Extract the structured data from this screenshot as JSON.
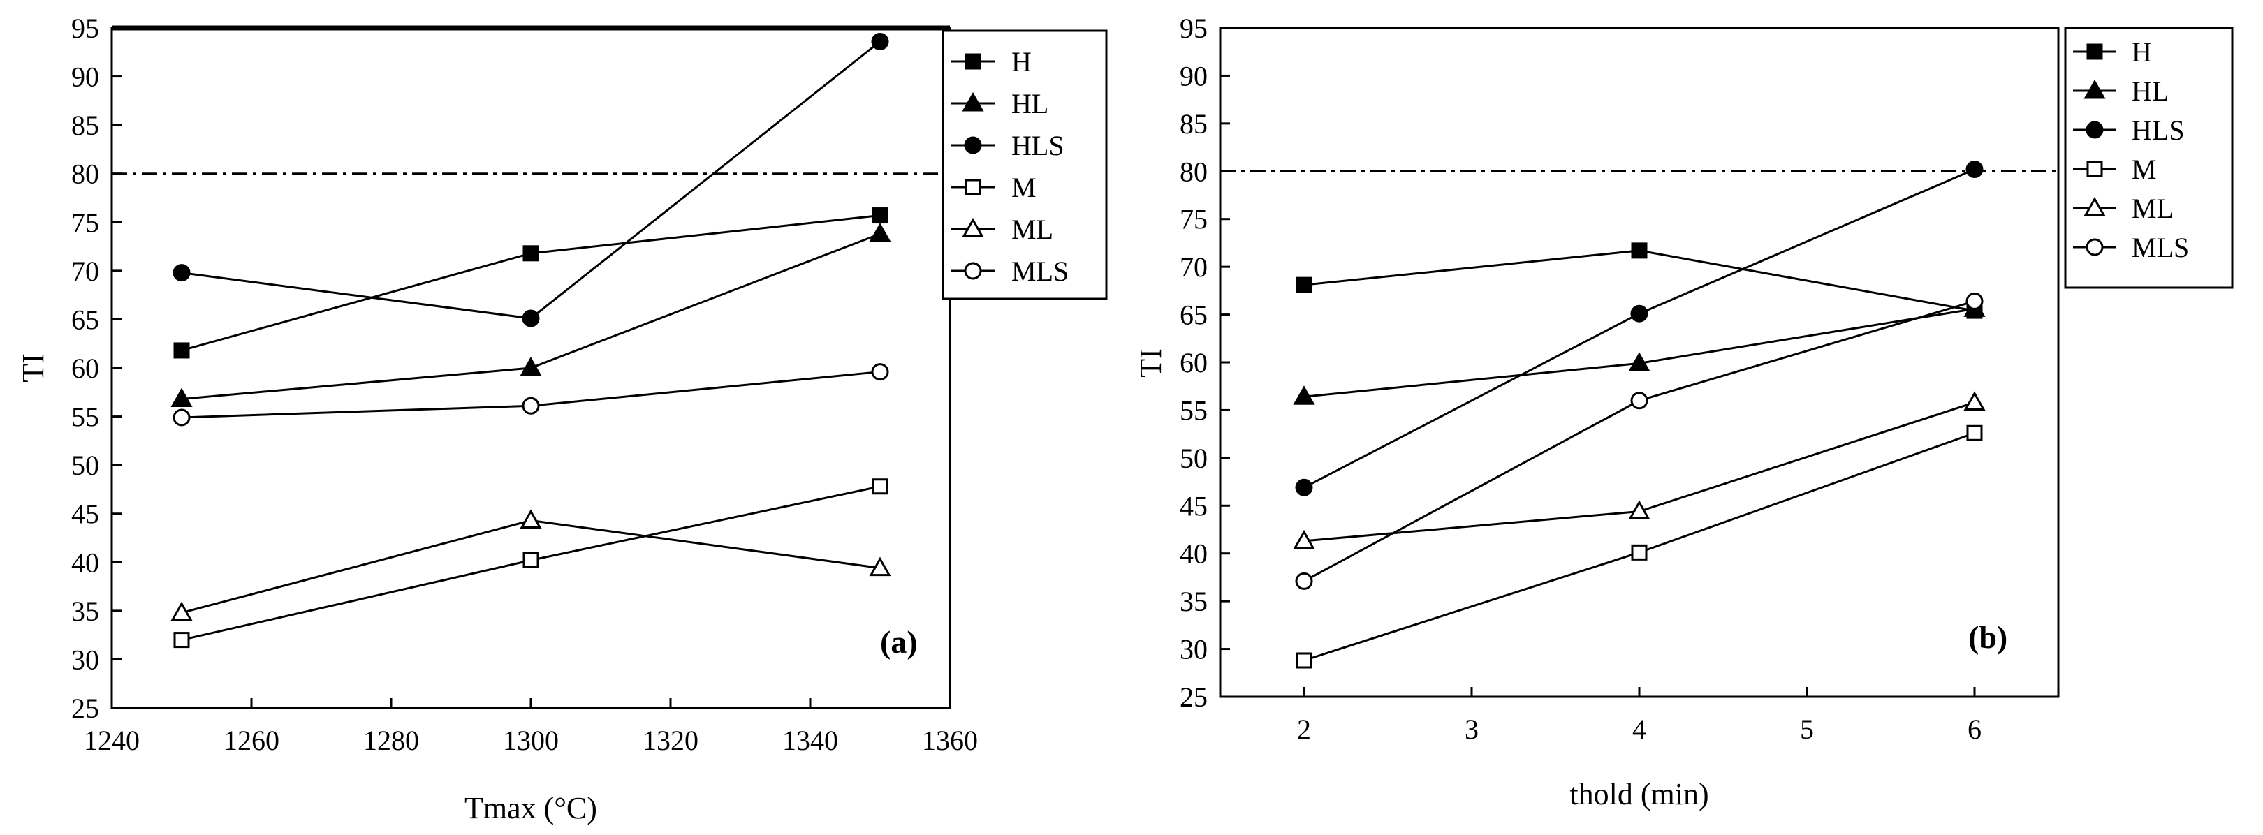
{
  "chart_data": [
    {
      "type": "line",
      "panel_label": "(a)",
      "xlabel": "Tmax (°C)",
      "ylabel": "TI",
      "xlim": [
        1240,
        1360
      ],
      "ylim": [
        25,
        95
      ],
      "x_ticks": [
        1240,
        1260,
        1280,
        1300,
        1320,
        1340,
        1360
      ],
      "y_ticks": [
        25,
        30,
        35,
        40,
        45,
        50,
        55,
        60,
        65,
        70,
        75,
        80,
        85,
        90,
        95
      ],
      "x": [
        1250,
        1300,
        1350
      ],
      "reference_line": 80,
      "legend_position": "top-right",
      "series": [
        {
          "name": "H",
          "marker": "square-filled",
          "values": [
            61.8,
            71.8,
            75.7
          ]
        },
        {
          "name": "HL",
          "marker": "triangle-filled",
          "values": [
            56.8,
            60.0,
            73.8
          ]
        },
        {
          "name": "HLS",
          "marker": "circle-filled",
          "values": [
            69.8,
            65.1,
            93.6
          ]
        },
        {
          "name": "M",
          "marker": "square-open",
          "values": [
            32.0,
            40.2,
            47.8
          ]
        },
        {
          "name": "ML",
          "marker": "triangle-open",
          "values": [
            34.8,
            44.3,
            39.4
          ]
        },
        {
          "name": "MLS",
          "marker": "circle-open",
          "values": [
            54.9,
            56.1,
            59.6
          ]
        }
      ]
    },
    {
      "type": "line",
      "panel_label": "(b)",
      "xlabel": "thold (min)",
      "ylabel": "TI",
      "xlim": [
        1.5,
        6.5
      ],
      "ylim": [
        25,
        95
      ],
      "x_ticks": [
        2,
        3,
        4,
        5,
        6
      ],
      "y_ticks": [
        25,
        30,
        35,
        40,
        45,
        50,
        55,
        60,
        65,
        70,
        75,
        80,
        85,
        90,
        95
      ],
      "x": [
        2,
        4,
        6
      ],
      "reference_line": 80,
      "legend_position": "top-right",
      "series": [
        {
          "name": "H",
          "marker": "square-filled",
          "values": [
            68.1,
            71.7,
            65.4
          ]
        },
        {
          "name": "HL",
          "marker": "triangle-filled",
          "values": [
            56.4,
            59.9,
            65.6
          ]
        },
        {
          "name": "HLS",
          "marker": "circle-filled",
          "values": [
            46.9,
            65.1,
            80.2
          ]
        },
        {
          "name": "M",
          "marker": "square-open",
          "values": [
            28.8,
            40.1,
            52.6
          ]
        },
        {
          "name": "ML",
          "marker": "triangle-open",
          "values": [
            41.3,
            44.4,
            55.8
          ]
        },
        {
          "name": "MLS",
          "marker": "circle-open",
          "values": [
            37.1,
            56.0,
            66.4
          ]
        }
      ]
    }
  ]
}
